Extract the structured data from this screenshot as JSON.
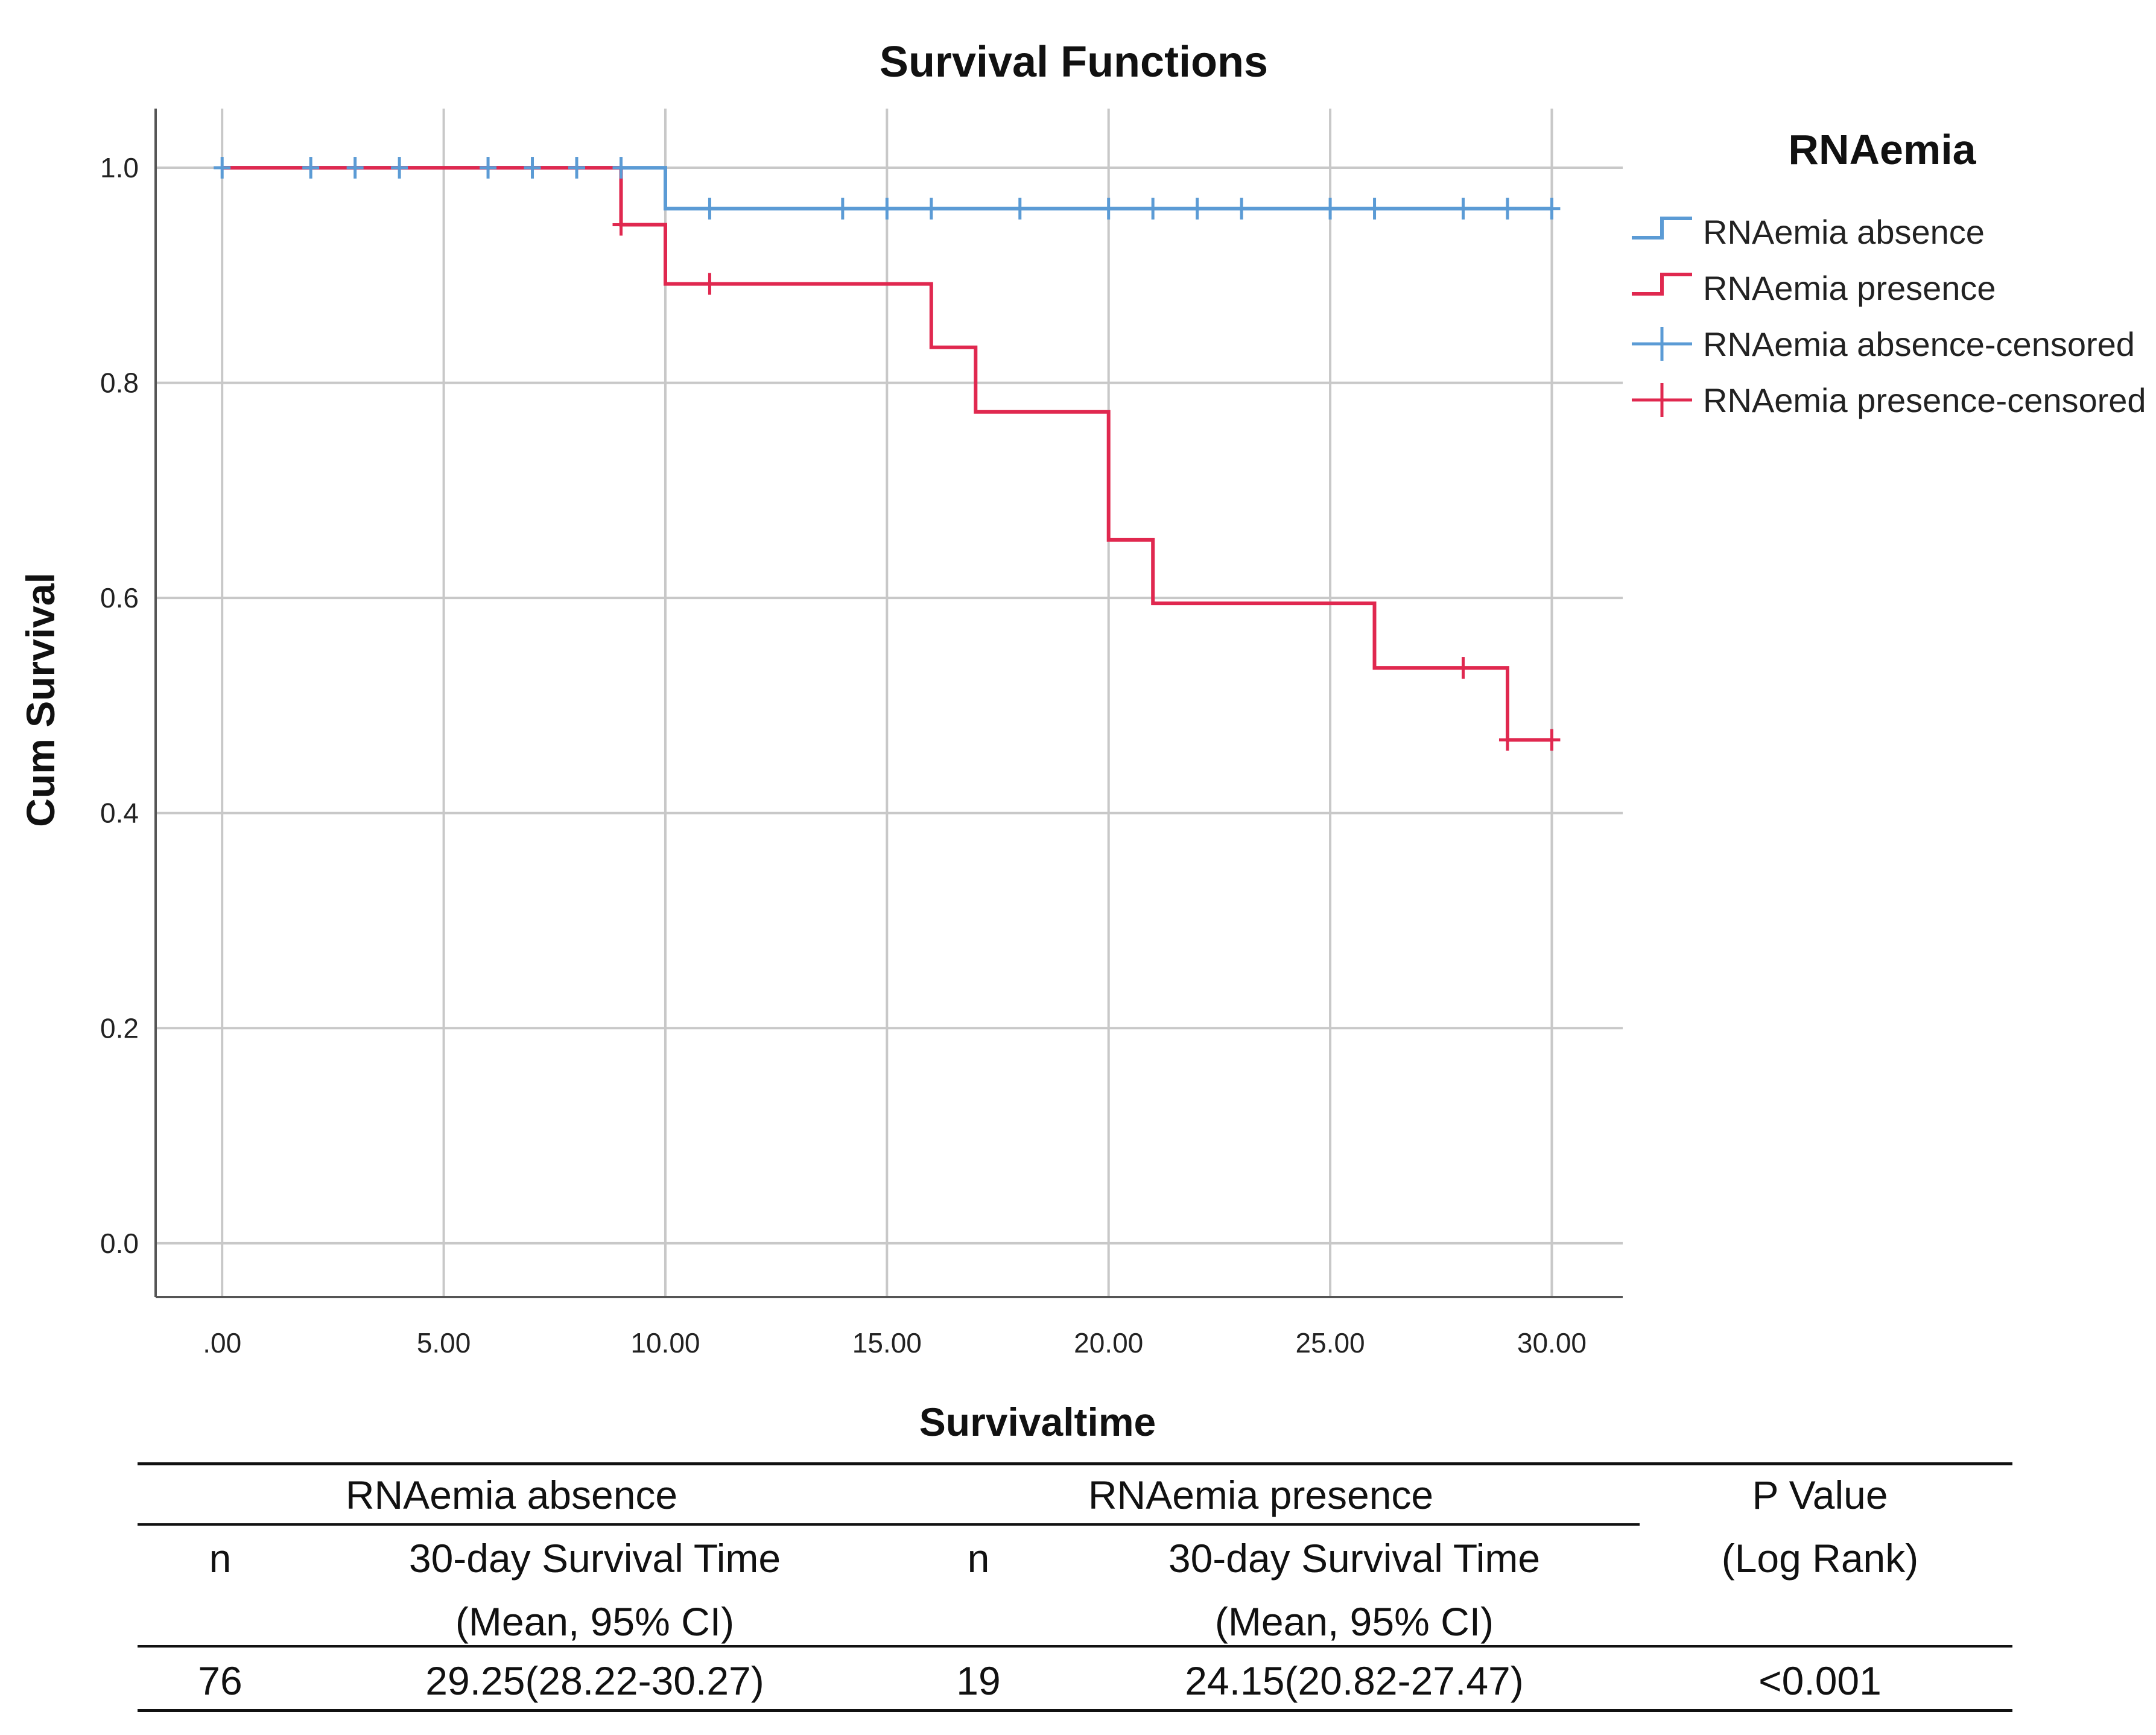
{
  "chart_data": {
    "type": "line",
    "title": "Survival Functions",
    "xlabel": "Survivaltime",
    "ylabel": "Cum Survival",
    "xlim": [
      -1.5,
      31.6
    ],
    "ylim": [
      -0.05,
      1.055
    ],
    "x_ticks": [
      0,
      5,
      10,
      15,
      20,
      25,
      30
    ],
    "x_tick_labels": [
      ".00",
      "5.00",
      "10.00",
      "15.00",
      "20.00",
      "25.00",
      "30.00"
    ],
    "y_ticks": [
      0,
      0.2,
      0.4,
      0.6,
      0.8,
      1.0
    ],
    "y_tick_labels": [
      "0.0",
      "0.2",
      "0.4",
      "0.6",
      "0.8",
      "1.0"
    ],
    "grid": true,
    "legend_title": "RNAemia",
    "legend_position": "right",
    "series": [
      {
        "name": "RNAemia absence",
        "color": "#5b9bd5",
        "kind": "step",
        "steps": [
          [
            0,
            1.0
          ],
          [
            10,
            1.0
          ],
          [
            10,
            0.962
          ],
          [
            30,
            0.962
          ]
        ],
        "censored_label": "RNAemia absence-censored",
        "censored": [
          [
            0,
            1.0
          ],
          [
            2,
            1.0
          ],
          [
            3,
            1.0
          ],
          [
            4,
            1.0
          ],
          [
            6,
            1.0
          ],
          [
            7,
            1.0
          ],
          [
            8,
            1.0
          ],
          [
            9,
            1.0
          ],
          [
            11,
            0.962
          ],
          [
            14,
            0.962
          ],
          [
            15,
            0.962
          ],
          [
            16,
            0.962
          ],
          [
            18,
            0.962
          ],
          [
            20,
            0.962
          ],
          [
            21,
            0.962
          ],
          [
            22,
            0.962
          ],
          [
            23,
            0.962
          ],
          [
            25,
            0.962
          ],
          [
            26,
            0.962
          ],
          [
            28,
            0.962
          ],
          [
            29,
            0.962
          ],
          [
            30,
            0.962
          ]
        ]
      },
      {
        "name": "RNAemia presence",
        "color": "#e0284f",
        "kind": "step",
        "steps": [
          [
            0,
            1.0
          ],
          [
            9,
            1.0
          ],
          [
            9,
            0.947
          ],
          [
            10,
            0.947
          ],
          [
            10,
            0.892
          ],
          [
            16,
            0.892
          ],
          [
            16,
            0.833
          ],
          [
            17,
            0.833
          ],
          [
            17,
            0.773
          ],
          [
            20,
            0.773
          ],
          [
            20,
            0.654
          ],
          [
            21,
            0.654
          ],
          [
            21,
            0.595
          ],
          [
            26,
            0.595
          ],
          [
            26,
            0.535
          ],
          [
            29,
            0.535
          ],
          [
            29,
            0.468
          ],
          [
            30,
            0.468
          ]
        ],
        "censored_label": "RNAemia presence-censored",
        "censored": [
          [
            9,
            0.947
          ],
          [
            11,
            0.892
          ],
          [
            28,
            0.535
          ],
          [
            29,
            0.468
          ],
          [
            30,
            0.468
          ]
        ]
      }
    ]
  },
  "table": {
    "group_headers": [
      "RNAemia absence",
      "RNAemia presence"
    ],
    "pvalue_header_line1": "P Value",
    "pvalue_header_line2": "(Log Rank)",
    "n_label": "n",
    "survival_header_line1": "30-day Survival Time",
    "survival_header_line2": "(Mean, 95% CI)",
    "row": {
      "absence_n": "76",
      "absence_survival": "29.25(28.22-30.27)",
      "presence_n": "19",
      "presence_survival": "24.15(20.82-27.47)",
      "p_value": "<0.001"
    }
  }
}
